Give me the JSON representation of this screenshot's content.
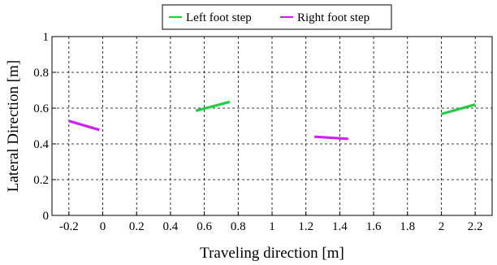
{
  "chart_data": {
    "type": "line",
    "xlabel": "Traveling direction [m]",
    "ylabel": "Lateral Direction [m]",
    "xlim": [
      -0.3,
      2.3
    ],
    "ylim": [
      0,
      1
    ],
    "x_ticks": [
      -0.2,
      0,
      0.2,
      0.4,
      0.6,
      0.8,
      1,
      1.2,
      1.4,
      1.6,
      1.8,
      2,
      2.2
    ],
    "x_tick_labels": [
      "-0.2",
      "0",
      "0.2",
      "0.4",
      "0.6",
      "0.8",
      "1",
      "1.2",
      "1.4",
      "1.6",
      "1.8",
      "2",
      "2.2"
    ],
    "y_ticks": [
      0,
      0.2,
      0.4,
      0.6,
      0.8,
      1
    ],
    "y_tick_labels": [
      "0",
      "0.2",
      "0.4",
      "0.6",
      "0.8",
      "1"
    ],
    "grid": true,
    "legend_position": "top-center",
    "series": [
      {
        "name": "Left foot step",
        "color": "#22cc44",
        "segments": [
          [
            [
              0.55,
              0.585
            ],
            [
              0.75,
              0.635
            ]
          ],
          [
            [
              2.0,
              0.567
            ],
            [
              2.2,
              0.62
            ]
          ]
        ]
      },
      {
        "name": "Right foot step",
        "color": "#cc22ee",
        "segments": [
          [
            [
              -0.2,
              0.528
            ],
            [
              -0.02,
              0.478
            ]
          ],
          [
            [
              1.25,
              0.44
            ],
            [
              1.45,
              0.428
            ]
          ]
        ]
      }
    ]
  }
}
